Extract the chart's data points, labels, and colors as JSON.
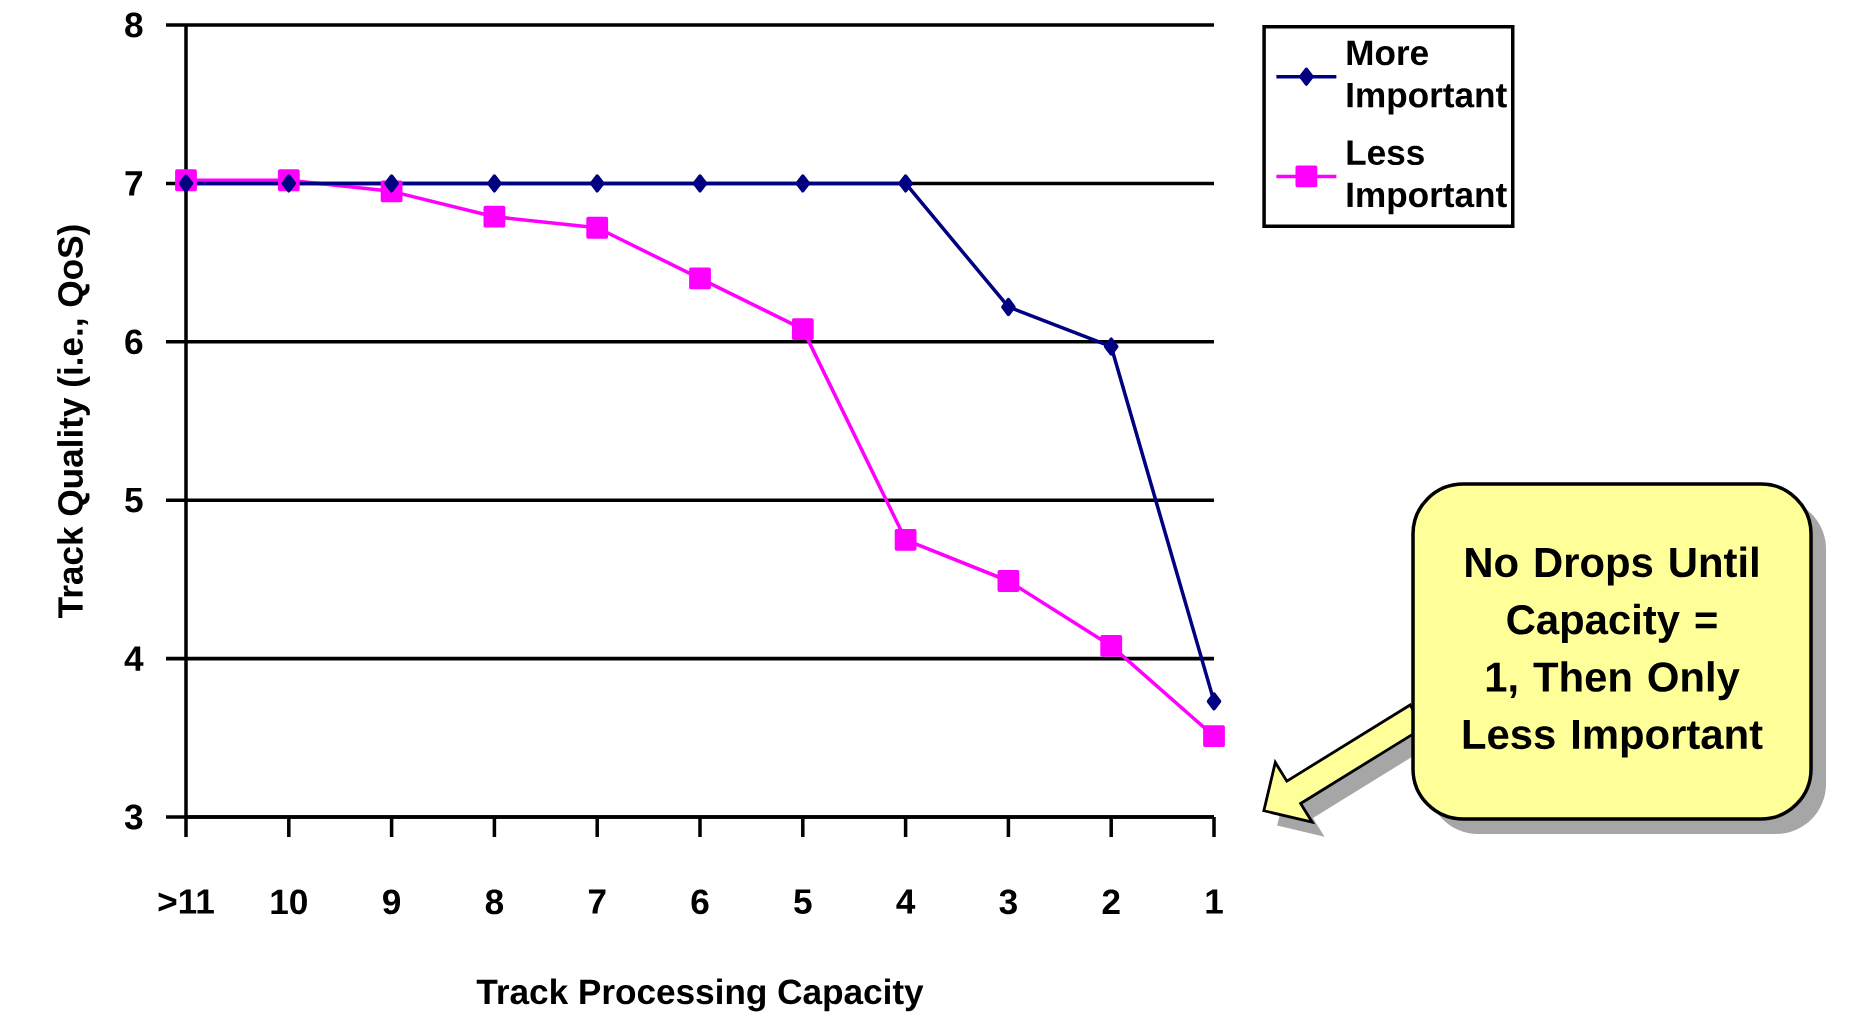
{
  "chart_data": {
    "type": "line",
    "xlabel": "Track Processing Capacity",
    "ylabel": "Track Quality (i.e., QoS)",
    "categories": [
      ">11",
      "10",
      "9",
      "8",
      "7",
      "6",
      "5",
      "4",
      "3",
      "2",
      "1"
    ],
    "series": [
      {
        "name": "More Important",
        "color": "#000080",
        "marker": "diamond",
        "values": [
          7,
          7,
          7,
          7,
          7,
          7,
          7,
          7,
          6.22,
          5.97,
          3.73
        ]
      },
      {
        "name": "Less Important",
        "color": "#ff00ff",
        "marker": "square",
        "values": [
          7.02,
          7.02,
          6.95,
          6.79,
          6.72,
          6.4,
          6.08,
          4.75,
          4.49,
          4.08,
          3.51
        ]
      }
    ],
    "ylim": [
      3,
      8
    ],
    "yticks": [
      3,
      4,
      5,
      6,
      7,
      8
    ],
    "grid": "y",
    "legend": "top right",
    "line_style": "solid",
    "annotations": [
      "No Drops Until Capacity = 1, Then Only Less Important"
    ]
  }
}
